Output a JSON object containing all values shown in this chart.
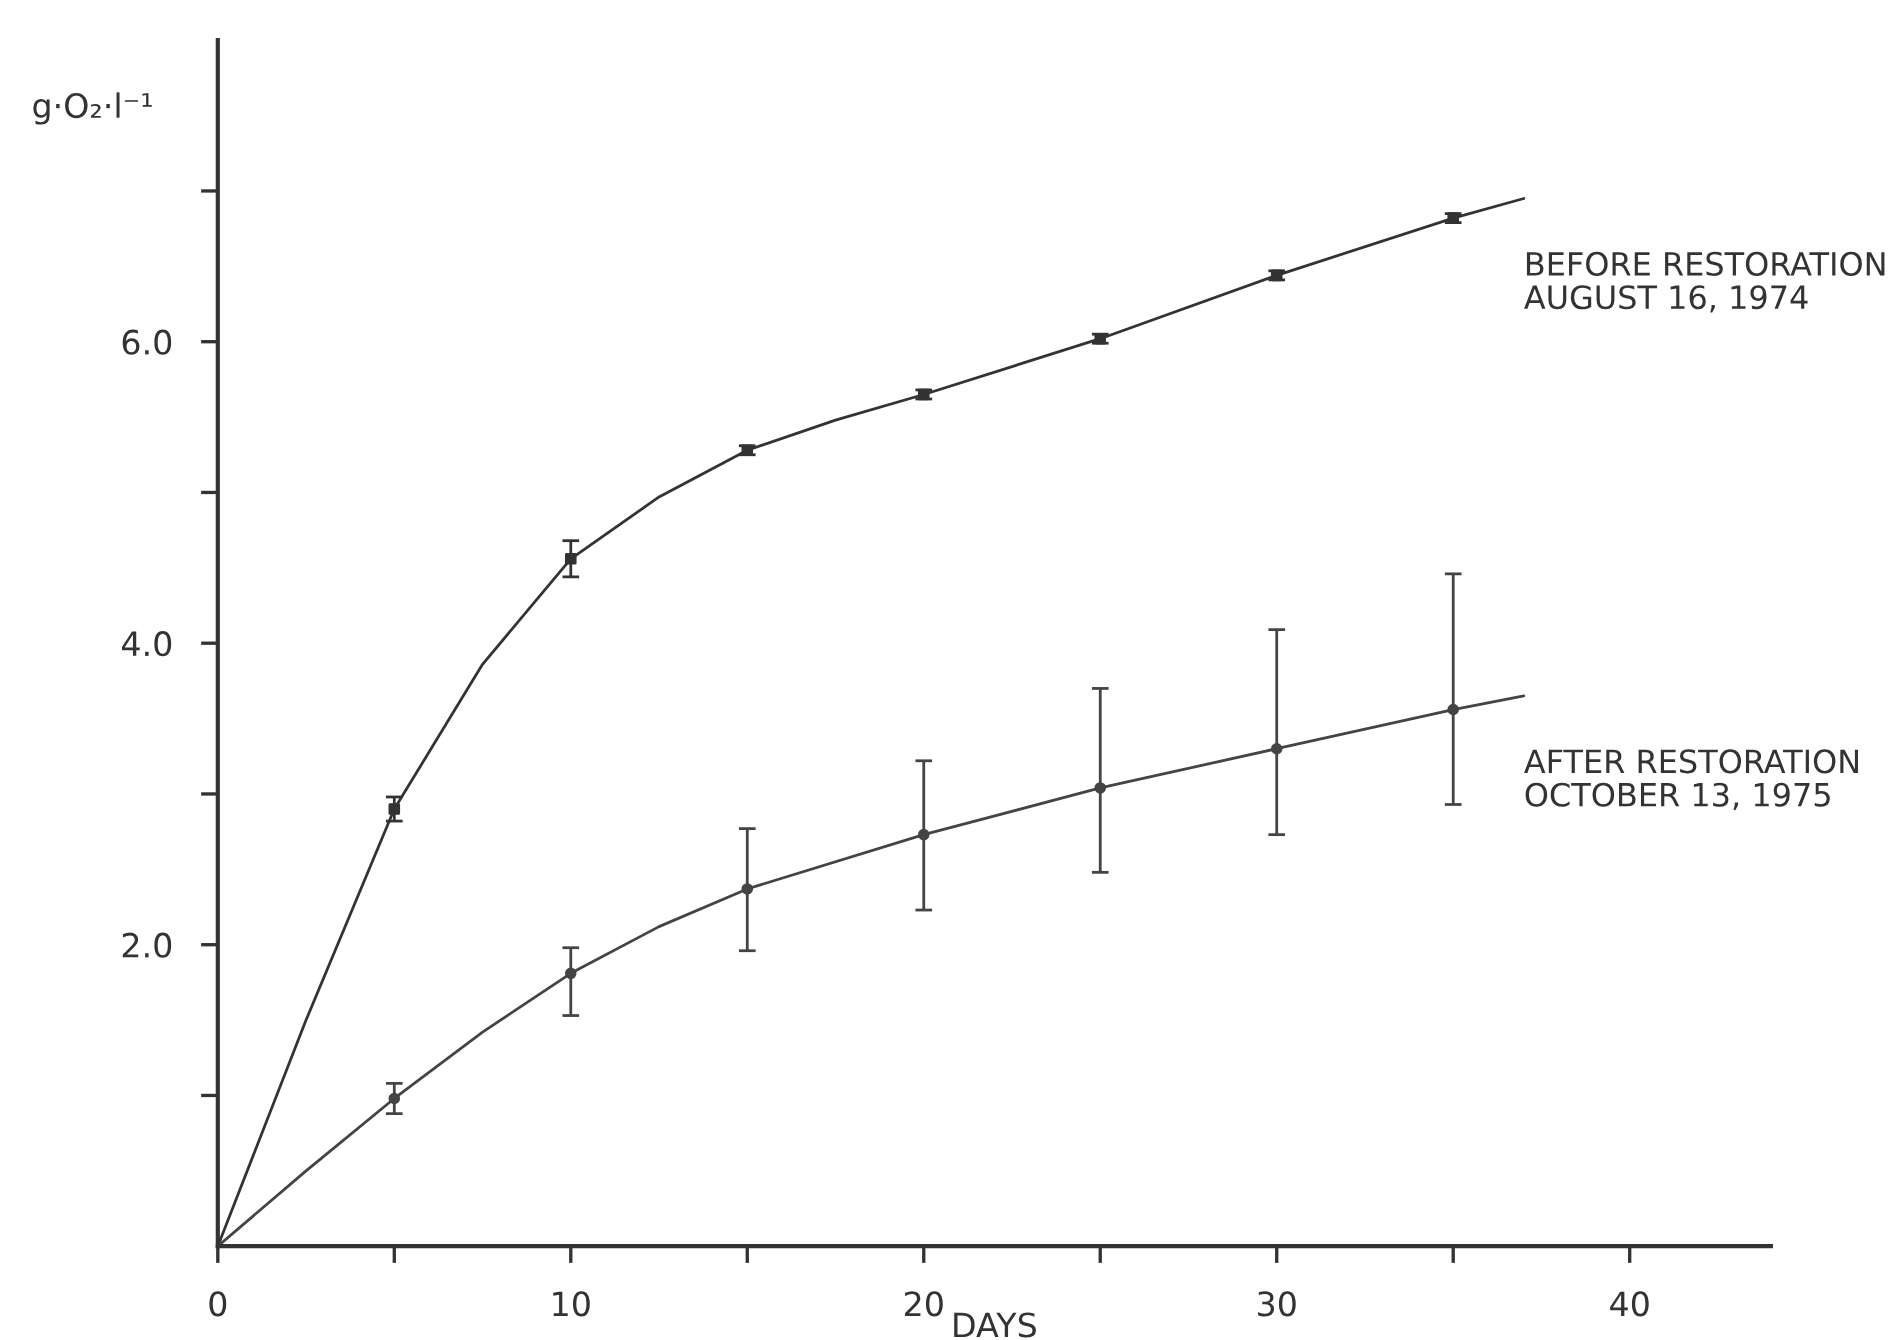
{
  "chart_data": {
    "type": "line",
    "xlabel": "DAYS",
    "ylabel": "g·O₂·l⁻¹",
    "xlim": [
      0,
      44
    ],
    "ylim": [
      0,
      8
    ],
    "xticks": [
      0,
      {
        "value": 5,
        "label": null
      },
      10,
      {
        "value": 15,
        "label": null
      },
      20,
      {
        "value": 25,
        "label": null
      },
      30,
      {
        "value": 35,
        "label": null
      },
      40
    ],
    "yticks": [
      {
        "value": 1,
        "label": null
      },
      {
        "value": 2,
        "label": "2.0"
      },
      {
        "value": 3,
        "label": null
      },
      {
        "value": 4,
        "label": "4.0"
      },
      {
        "value": 5,
        "label": null
      },
      {
        "value": 6,
        "label": "6.0"
      },
      {
        "value": 7,
        "label": null
      }
    ],
    "grid": false,
    "legend": false,
    "series": [
      {
        "name": "BEFORE RESTORATION\nAUGUST 16, 1974",
        "color": "#333333",
        "marker": "none",
        "line_style": "solid",
        "x": [
          0,
          2.5,
          5,
          7.5,
          10,
          12.5,
          15,
          17.5,
          20,
          25,
          30,
          35,
          37
        ],
        "values": [
          0,
          1.5,
          2.9,
          3.86,
          4.56,
          4.97,
          5.28,
          5.48,
          5.65,
          6.02,
          6.44,
          6.82,
          6.95
        ]
      },
      {
        "type": "scatter",
        "color": "#333333",
        "marker": "square",
        "x": [
          5,
          10,
          15,
          20,
          25,
          30,
          35
        ],
        "values": [
          2.9,
          4.56,
          5.28,
          5.65,
          6.02,
          6.44,
          6.82
        ],
        "errors": [
          0.08,
          0.12,
          0.03,
          0.03,
          0.03,
          0.03,
          0.03
        ]
      },
      {
        "name": "AFTER RESTORATION\nOCTOBER 13, 1975",
        "color": "#444444",
        "marker": "none",
        "line_style": "solid",
        "x": [
          0,
          2.5,
          5,
          7.5,
          10,
          12.5,
          15,
          20,
          25,
          30,
          35,
          37
        ],
        "values": [
          0,
          0.5,
          0.98,
          1.42,
          1.81,
          2.12,
          2.37,
          2.73,
          3.04,
          3.3,
          3.56,
          3.65
        ]
      },
      {
        "type": "scatter",
        "color": "#444444",
        "marker": "circle",
        "x": [
          5,
          10,
          15,
          20,
          25,
          30,
          35
        ],
        "values": [
          0.98,
          1.81,
          2.37,
          2.73,
          3.04,
          3.3,
          3.56
        ],
        "errors": [
          [
            0.88,
            1.08
          ],
          [
            1.53,
            1.98
          ],
          [
            1.96,
            2.77
          ],
          [
            2.23,
            3.22
          ],
          [
            2.48,
            3.7
          ],
          [
            2.73,
            4.09
          ],
          [
            2.93,
            4.46
          ]
        ]
      }
    ]
  }
}
